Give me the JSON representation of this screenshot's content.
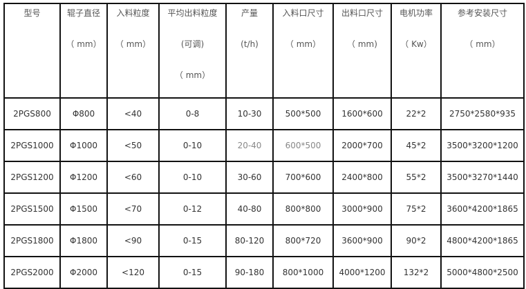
{
  "headers": [
    [
      "型号"
    ],
    [
      "辊子直径",
      "（ mm）"
    ],
    [
      "入料粒度",
      "（ mm）"
    ],
    [
      "平均出料粒度",
      "(可调)",
      "（ mm）"
    ],
    [
      "产量",
      "(t/h)"
    ],
    [
      "入料口尺寸",
      "（ mm）"
    ],
    [
      "出料口尺寸",
      "（ mm)"
    ],
    [
      "电机功率",
      "（ Kw）"
    ],
    [
      "参考安装尺寸",
      "（ mm）"
    ]
  ],
  "rows": [
    [
      "2PGS800",
      "Φ800",
      "<40",
      "0-8",
      "10-30",
      "500*500",
      "1600*600",
      "22*2",
      "2750*2580*935"
    ],
    [
      "2PGS1000",
      "Φ1000",
      "<50",
      "0-10",
      "20-40",
      "600*500",
      "2000*700",
      "45*2",
      "3500*3200*1200"
    ],
    [
      "2PGS1200",
      "Φ1200",
      "<60",
      "0-10",
      "30-60",
      "700*600",
      "2400*800",
      "55*2",
      "3500*3270*1440"
    ],
    [
      "2PGS1500",
      "Φ1500",
      "<70",
      "0-12",
      "40-80",
      "800*800",
      "3000*900",
      "75*2",
      "3600*4200*1865"
    ],
    [
      "2PGS1800",
      "Φ1800",
      "<90",
      "0-15",
      "80-120",
      "800*720",
      "3600*900",
      "90*2",
      "4800*4200*1865"
    ],
    [
      "2PGS2000",
      "Φ2000",
      "<120",
      "0-15",
      "90-180",
      "800*1000",
      "4000*1200",
      "132*2",
      "5000*4800*2500"
    ]
  ]
}
